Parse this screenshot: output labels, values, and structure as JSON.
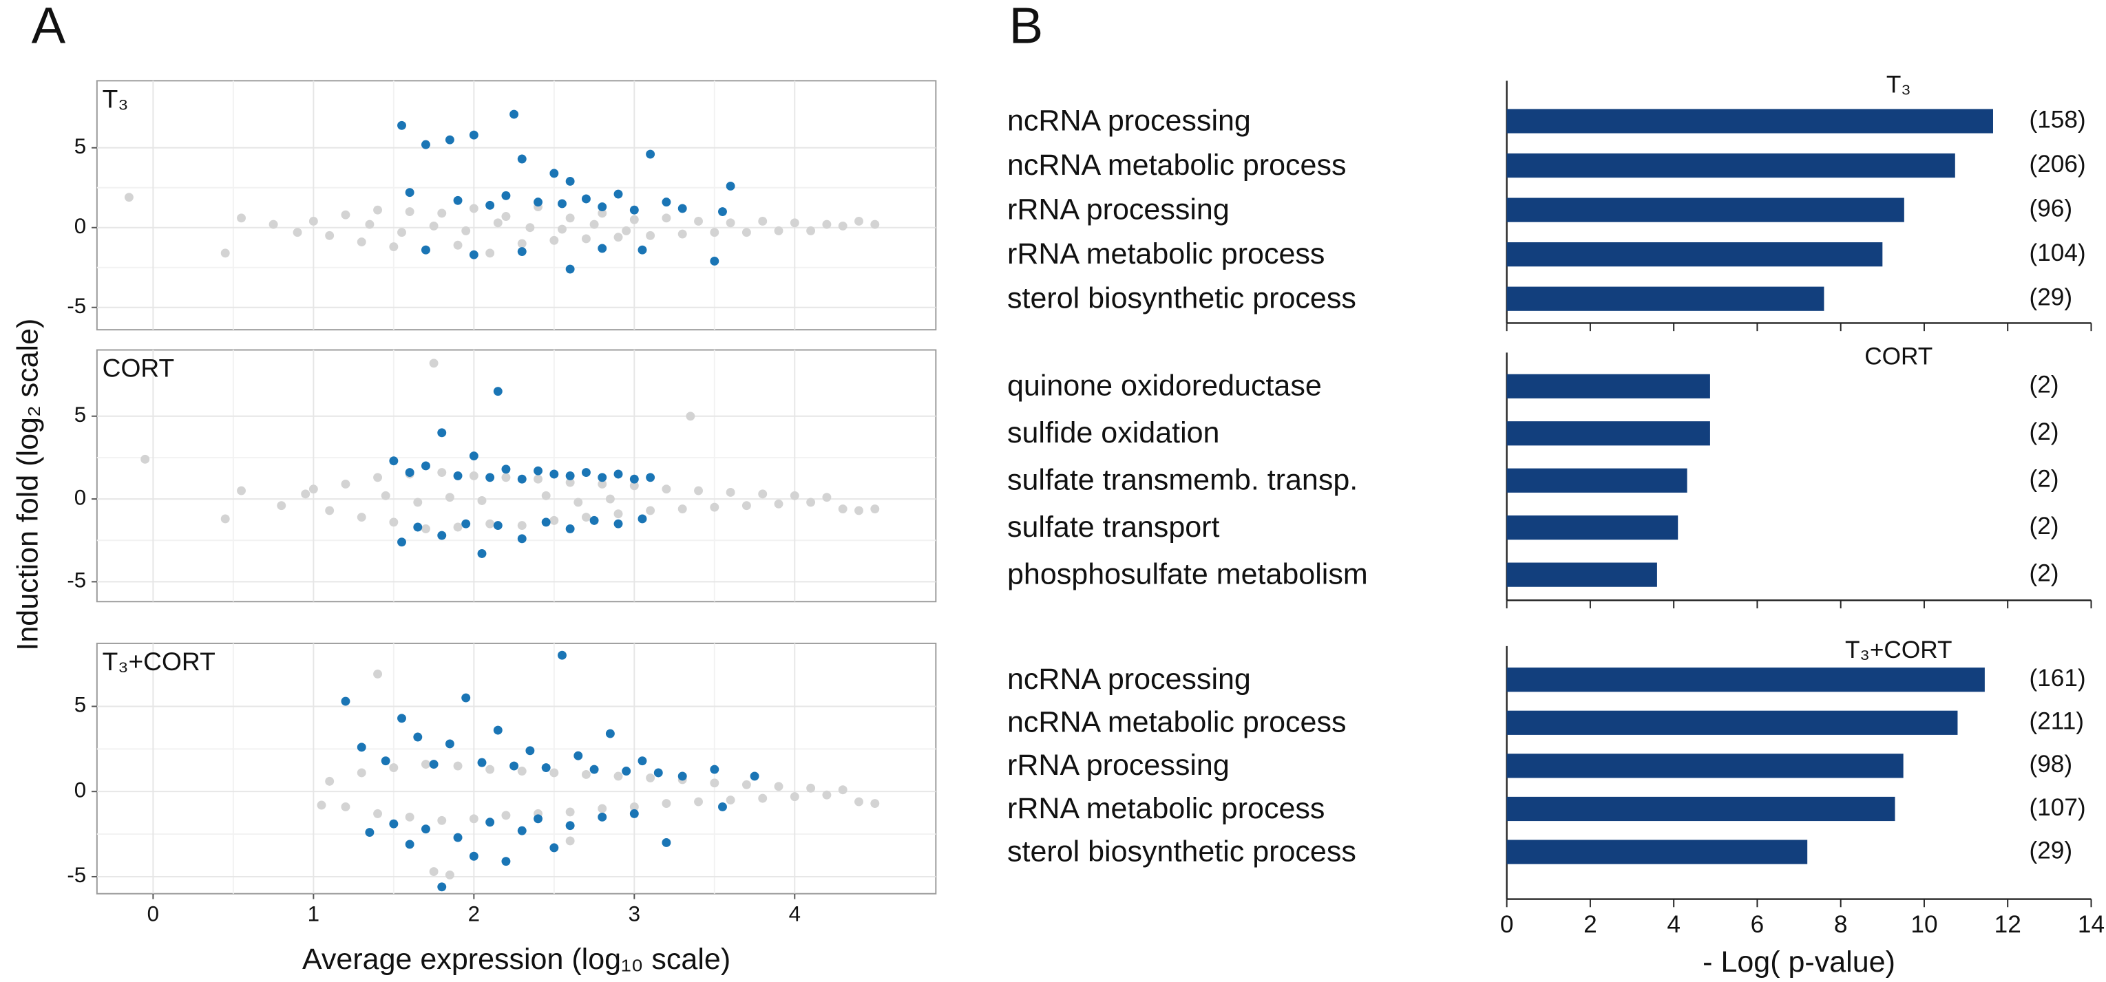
{
  "panel_labels": [
    "A",
    "B"
  ],
  "chart_data": [
    {
      "type": "scatter",
      "title": "T₃",
      "ylabel": "Induction fold (log₂ scale)",
      "xlim": [
        -0.35,
        4.88
      ],
      "ylim": [
        -6.4,
        9.2
      ],
      "xticks": [
        0,
        1,
        2,
        3,
        4
      ],
      "yticks": [
        -5,
        0,
        5
      ],
      "show_xtick_labels": false,
      "grid": true,
      "series": [
        {
          "color": "#d3d3d3",
          "x": [
            -0.15,
            0.45,
            0.55,
            0.75,
            0.9,
            1.0,
            1.1,
            1.2,
            1.3,
            1.4,
            1.5,
            1.6,
            1.7,
            1.8,
            1.9,
            2.0,
            2.1,
            2.2,
            2.3,
            2.4,
            2.5,
            2.6,
            2.7,
            2.8,
            2.9,
            3.0,
            3.1,
            3.2,
            3.3,
            3.4,
            3.5,
            3.6,
            3.7,
            3.8,
            3.9,
            4.0,
            4.1,
            4.2,
            4.3,
            4.4,
            4.5,
            1.35,
            1.55,
            1.75,
            1.95,
            2.15,
            2.35,
            2.55,
            2.75,
            2.95
          ],
          "values": [
            1.9,
            -1.6,
            0.6,
            0.2,
            -0.3,
            0.4,
            -0.5,
            0.8,
            -0.9,
            1.1,
            -1.2,
            1.0,
            -1.4,
            0.9,
            -1.1,
            1.2,
            -1.6,
            0.7,
            -1.0,
            1.3,
            -0.8,
            0.6,
            -0.7,
            0.9,
            -0.6,
            0.5,
            -0.5,
            0.6,
            -0.4,
            0.4,
            -0.3,
            0.3,
            -0.3,
            0.4,
            -0.2,
            0.3,
            -0.2,
            0.2,
            0.1,
            0.4,
            0.2,
            0.2,
            -0.3,
            0.1,
            -0.2,
            0.3,
            0.0,
            -0.1,
            0.2,
            -0.2
          ]
        },
        {
          "color": "#1a75b5",
          "x": [
            1.55,
            1.6,
            1.7,
            1.85,
            1.9,
            2.0,
            2.1,
            2.2,
            2.25,
            2.3,
            2.4,
            2.5,
            2.55,
            2.6,
            2.7,
            2.8,
            2.9,
            3.0,
            3.1,
            3.2,
            3.3,
            3.5,
            3.6,
            1.7,
            2.0,
            2.3,
            2.6,
            2.8,
            3.05,
            3.55
          ],
          "values": [
            6.4,
            2.2,
            5.2,
            5.5,
            1.7,
            5.8,
            1.4,
            2.0,
            7.1,
            4.3,
            1.6,
            3.4,
            1.5,
            2.9,
            1.8,
            1.3,
            2.1,
            1.1,
            4.6,
            1.6,
            1.2,
            -2.1,
            2.6,
            -1.4,
            -1.7,
            -1.5,
            -2.6,
            -1.3,
            -1.4,
            1.0
          ]
        }
      ]
    },
    {
      "type": "scatter",
      "title": "CORT",
      "xlim": [
        -0.35,
        4.88
      ],
      "ylim": [
        -6.2,
        9.0
      ],
      "xticks": [
        0,
        1,
        2,
        3,
        4
      ],
      "yticks": [
        -5,
        0,
        5
      ],
      "show_xtick_labels": false,
      "grid": true,
      "series": [
        {
          "color": "#d3d3d3",
          "x": [
            -0.05,
            0.45,
            0.55,
            0.8,
            0.95,
            1.0,
            1.1,
            1.2,
            1.3,
            1.4,
            1.5,
            1.6,
            1.7,
            1.8,
            1.9,
            2.0,
            2.1,
            2.2,
            2.3,
            2.4,
            2.5,
            2.6,
            2.7,
            2.8,
            2.9,
            3.0,
            3.1,
            3.2,
            3.3,
            3.4,
            3.5,
            3.6,
            3.7,
            3.8,
            3.9,
            4.0,
            4.1,
            4.2,
            4.3,
            4.4,
            4.5,
            1.75,
            3.35,
            1.45,
            1.65,
            1.85,
            2.05,
            2.45,
            2.65,
            2.85
          ],
          "values": [
            2.4,
            -1.2,
            0.5,
            -0.4,
            0.3,
            0.6,
            -0.7,
            0.9,
            -1.1,
            1.3,
            -1.4,
            1.5,
            -1.8,
            1.6,
            -1.7,
            1.4,
            -1.5,
            1.3,
            -1.6,
            1.2,
            -1.3,
            1.0,
            -1.1,
            0.9,
            -0.9,
            0.8,
            -0.7,
            0.6,
            -0.6,
            0.5,
            -0.5,
            0.4,
            -0.4,
            0.3,
            -0.3,
            0.2,
            -0.2,
            0.1,
            -0.6,
            -0.7,
            -0.6,
            8.2,
            5.0,
            0.2,
            -0.2,
            0.1,
            -0.1,
            0.2,
            -0.2,
            0.0
          ]
        },
        {
          "color": "#1a75b5",
          "x": [
            1.5,
            1.6,
            1.7,
            1.8,
            1.9,
            2.0,
            2.1,
            2.2,
            2.3,
            2.4,
            2.5,
            2.6,
            2.7,
            2.8,
            2.9,
            3.0,
            3.1,
            1.55,
            1.65,
            1.8,
            1.95,
            2.05,
            2.15,
            2.3,
            2.45,
            2.6,
            2.75,
            2.9,
            3.05,
            2.15
          ],
          "values": [
            2.3,
            1.6,
            2.0,
            4.0,
            1.4,
            2.6,
            1.3,
            1.8,
            1.2,
            1.7,
            1.5,
            1.4,
            1.6,
            1.3,
            1.5,
            1.2,
            1.3,
            -2.6,
            -1.7,
            -2.2,
            -1.5,
            -3.3,
            -1.6,
            -2.4,
            -1.4,
            -1.8,
            -1.3,
            -1.5,
            -1.2,
            6.5
          ]
        }
      ]
    },
    {
      "type": "scatter",
      "title": "T₃+CORT",
      "xlabel": "Average expression (log₁₀ scale)",
      "xlim": [
        -0.35,
        4.88
      ],
      "ylim": [
        -6.0,
        8.7
      ],
      "xticks": [
        0,
        1,
        2,
        3,
        4
      ],
      "yticks": [
        -5,
        0,
        5
      ],
      "show_xtick_labels": true,
      "grid": true,
      "series": [
        {
          "color": "#d3d3d3",
          "x": [
            1.05,
            1.1,
            1.2,
            1.3,
            1.4,
            1.5,
            1.6,
            1.7,
            1.8,
            1.9,
            2.0,
            2.1,
            2.2,
            2.3,
            2.4,
            2.5,
            2.6,
            2.7,
            2.8,
            2.9,
            3.0,
            3.1,
            3.2,
            3.3,
            3.4,
            3.5,
            3.6,
            3.7,
            3.8,
            3.9,
            4.0,
            4.1,
            4.2,
            4.3,
            4.4,
            4.5,
            1.4,
            1.75,
            1.85,
            2.6
          ],
          "values": [
            -0.8,
            0.6,
            -0.9,
            1.1,
            -1.3,
            1.4,
            -1.5,
            1.6,
            -1.7,
            1.5,
            -1.6,
            1.3,
            -1.4,
            1.2,
            -1.3,
            1.1,
            -1.2,
            1.0,
            -1.0,
            0.9,
            -0.9,
            0.8,
            -0.7,
            0.7,
            -0.6,
            0.5,
            -0.5,
            0.4,
            -0.4,
            0.3,
            -0.3,
            0.2,
            -0.2,
            0.1,
            -0.6,
            -0.7,
            6.9,
            -4.7,
            -4.9,
            -2.9
          ]
        },
        {
          "color": "#1a75b5",
          "x": [
            1.2,
            1.3,
            1.45,
            1.55,
            1.65,
            1.75,
            1.85,
            1.95,
            2.05,
            2.15,
            2.25,
            2.35,
            2.45,
            2.55,
            2.65,
            2.75,
            2.85,
            2.95,
            3.05,
            3.15,
            3.3,
            3.5,
            3.75,
            1.35,
            1.5,
            1.6,
            1.7,
            1.8,
            1.9,
            2.0,
            2.1,
            2.2,
            2.3,
            2.4,
            2.5,
            2.6,
            2.8,
            3.0,
            3.2,
            3.55
          ],
          "values": [
            5.3,
            2.6,
            1.8,
            4.3,
            3.2,
            1.6,
            2.8,
            5.5,
            1.7,
            3.6,
            1.5,
            2.4,
            1.4,
            8.0,
            2.1,
            1.3,
            3.4,
            1.2,
            1.8,
            1.1,
            0.9,
            1.3,
            0.9,
            -2.4,
            -1.9,
            -3.1,
            -2.2,
            -5.6,
            -2.7,
            -3.8,
            -1.8,
            -4.1,
            -2.3,
            -1.6,
            -3.3,
            -2.0,
            -1.5,
            -1.3,
            -3.0,
            -0.9
          ]
        }
      ]
    },
    {
      "type": "hbar",
      "title": "T₃",
      "color": "#123f7d",
      "categories": [
        "ncRNA processing",
        "ncRNA metabolic process",
        "rRNA processing",
        "rRNA metabolic process",
        "sterol biosynthetic process"
      ],
      "values": [
        11.65,
        10.74,
        9.52,
        9.0,
        7.6
      ],
      "annotations": [
        "(158)",
        "(206)",
        "(96)",
        "(104)",
        "(29)"
      ],
      "xlim": [
        0,
        14
      ],
      "xticks": [
        0,
        2,
        4,
        6,
        8,
        10,
        12,
        14
      ],
      "show_xtick_labels": false
    },
    {
      "type": "hbar",
      "title": "CORT",
      "color": "#123f7d",
      "categories": [
        "quinone oxidoreductase",
        "sulfide oxidation",
        "sulfate transmemb. transp.",
        "sulfate transport",
        "phosphosulfate metabolism"
      ],
      "values": [
        4.87,
        4.87,
        4.32,
        4.1,
        3.6
      ],
      "annotations": [
        "(2)",
        "(2)",
        "(2)",
        "(2)",
        "(2)"
      ],
      "xlim": [
        0,
        14
      ],
      "xticks": [
        0,
        2,
        4,
        6,
        8,
        10,
        12,
        14
      ],
      "show_xtick_labels": false
    },
    {
      "type": "hbar",
      "title": "T₃+CORT",
      "color": "#123f7d",
      "xlabel": "- Log( p-value)",
      "categories": [
        "ncRNA processing",
        "ncRNA metabolic process",
        "rRNA processing",
        "rRNA metabolic process",
        "sterol biosynthetic process"
      ],
      "values": [
        11.45,
        10.8,
        9.5,
        9.3,
        7.2
      ],
      "annotations": [
        "(161)",
        "(211)",
        "(98)",
        "(107)",
        "(29)"
      ],
      "xlim": [
        0,
        14
      ],
      "xticks": [
        0,
        2,
        4,
        6,
        8,
        10,
        12,
        14
      ],
      "show_xtick_labels": true
    }
  ]
}
